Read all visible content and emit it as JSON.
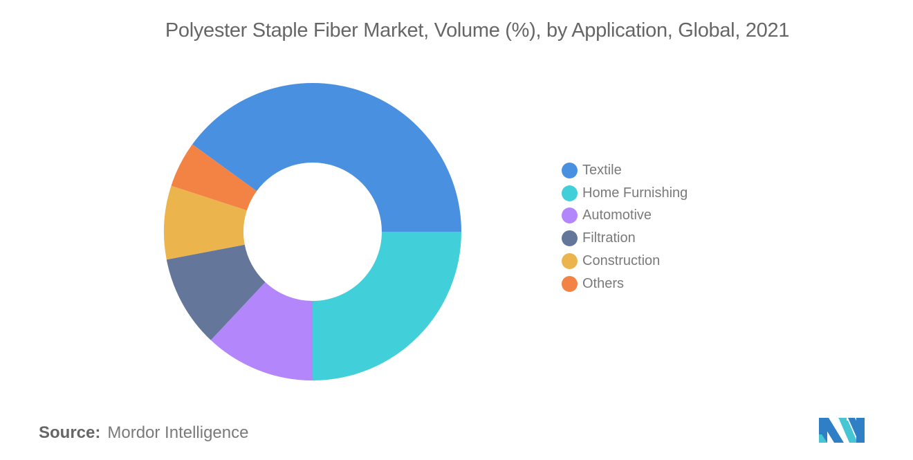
{
  "title": "Polyester Staple Fiber Market, Volume (%), by Application, Global, 2021",
  "source": {
    "label": "Source:",
    "value": "Mordor Intelligence"
  },
  "legend": {
    "items": [
      {
        "label": "Textile",
        "color": "#4a90e0"
      },
      {
        "label": "Home Furnishing",
        "color": "#41d0d9"
      },
      {
        "label": "Automotive",
        "color": "#b386fb"
      },
      {
        "label": "Filtration",
        "color": "#64769a"
      },
      {
        "label": "Construction",
        "color": "#ecb44c"
      },
      {
        "label": "Others",
        "color": "#f28345"
      }
    ]
  },
  "chart_data": {
    "type": "pie",
    "subtype": "donut",
    "title": "Polyester Staple Fiber Market, Volume (%), by Application, Global, 2021",
    "categories": [
      "Textile",
      "Home Furnishing",
      "Automotive",
      "Filtration",
      "Construction",
      "Others"
    ],
    "values": [
      40,
      25,
      12,
      10,
      8,
      5
    ],
    "colors": [
      "#4a90e0",
      "#41d0d9",
      "#b386fb",
      "#64769a",
      "#ecb44c",
      "#f28345"
    ],
    "unit": "%",
    "legend_position": "right",
    "data_labels": false
  }
}
